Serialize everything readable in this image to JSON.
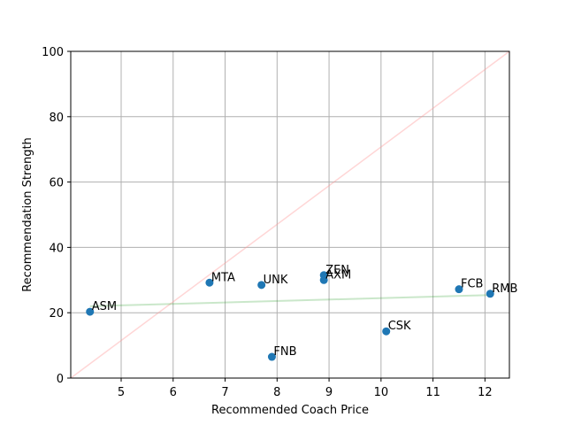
{
  "chart_data": {
    "type": "scatter",
    "title": "",
    "xlabel": "Recommended Coach Price",
    "ylabel": "Recommendation Strength",
    "xlim": [
      4.03,
      12.47
    ],
    "ylim": [
      0,
      100
    ],
    "xticks": [
      5,
      6,
      7,
      8,
      9,
      10,
      11,
      12
    ],
    "yticks": [
      0,
      20,
      40,
      60,
      80,
      100
    ],
    "grid": true,
    "point_color": "#1f77b4",
    "points": [
      {
        "label": "ASM",
        "x": 4.4,
        "y": 20.3
      },
      {
        "label": "MTA",
        "x": 6.7,
        "y": 29.2
      },
      {
        "label": "UNK",
        "x": 7.7,
        "y": 28.5
      },
      {
        "label": "FNB",
        "x": 7.9,
        "y": 6.5
      },
      {
        "label": "ZEN",
        "x": 8.9,
        "y": 31.5
      },
      {
        "label": "AXM",
        "x": 8.9,
        "y": 30.0
      },
      {
        "label": "CSK",
        "x": 10.1,
        "y": 14.3
      },
      {
        "label": "FCB",
        "x": 11.5,
        "y": 27.2
      },
      {
        "label": "RMB",
        "x": 12.1,
        "y": 25.8
      }
    ],
    "reference_lines": [
      {
        "kind": "identity",
        "color": "#ff9999",
        "alpha": 0.4,
        "x": [
          4.03,
          12.47
        ],
        "y": [
          0,
          100
        ]
      },
      {
        "kind": "trend",
        "color": "#2ca02c",
        "alpha": 0.25,
        "x": [
          4.4,
          12.1
        ],
        "y": [
          22.0,
          25.4
        ]
      }
    ]
  }
}
